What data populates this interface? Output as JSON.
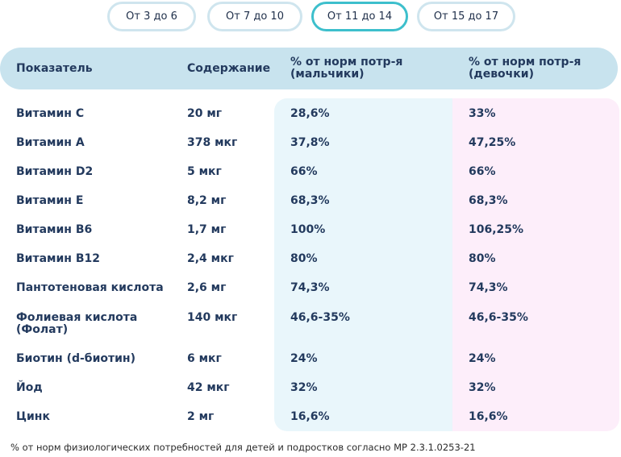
{
  "tabs": [
    {
      "label": "От 3 до 6",
      "active": false
    },
    {
      "label": "От 7 до 10",
      "active": false
    },
    {
      "label": "От 11 до 14",
      "active": true
    },
    {
      "label": "От 15 до 17",
      "active": false
    }
  ],
  "table": {
    "headers": {
      "indicator": "Показатель",
      "content": "Содержание",
      "boys": "% от норм потр-я\n(мальчики)",
      "girls": "% от норм потр-я\n(девочки)"
    },
    "rows": [
      {
        "name": "Витамин С",
        "content": "20 мг",
        "boys": "28,6%",
        "girls": "33%"
      },
      {
        "name": "Витамин А",
        "content": "378 мкг",
        "boys": "37,8%",
        "girls": "47,25%"
      },
      {
        "name": "Витамин D2",
        "content": "5 мкг",
        "boys": "66%",
        "girls": "66%"
      },
      {
        "name": "Витамин Е",
        "content": "8,2 мг",
        "boys": "68,3%",
        "girls": "68,3%"
      },
      {
        "name": "Витамин В6",
        "content": "1,7 мг",
        "boys": "100%",
        "girls": "106,25%"
      },
      {
        "name": "Витамин В12",
        "content": "2,4 мкг",
        "boys": "80%",
        "girls": "80%"
      },
      {
        "name": "Пантотеновая кислота",
        "content": "2,6 мг",
        "boys": "74,3%",
        "girls": "74,3%"
      },
      {
        "name": "Фолиевая кислота\n(Фолат)",
        "content": "140 мкг",
        "boys": "46,6-35%",
        "girls": "46,6-35%"
      },
      {
        "name": "Биотин (d-биотин)",
        "content": "6 мкг",
        "boys": "24%",
        "girls": "24%"
      },
      {
        "name": "Йод",
        "content": "42 мкг",
        "boys": "32%",
        "girls": "32%"
      },
      {
        "name": "Цинк",
        "content": "2 мг",
        "boys": "16,6%",
        "girls": "16,6%"
      }
    ]
  },
  "footnote": "% от норм физиологических потребностей для детей и подростков согласно МР 2.3.1.0253-21",
  "colors": {
    "header_bar": "#c8e3ee",
    "boys_panel": "#e9f6fb",
    "girls_panel": "#fdeefa",
    "active_tab_border": "#3dbfcc",
    "tab_border": "#cfe5ee",
    "text": "#233a5e"
  }
}
